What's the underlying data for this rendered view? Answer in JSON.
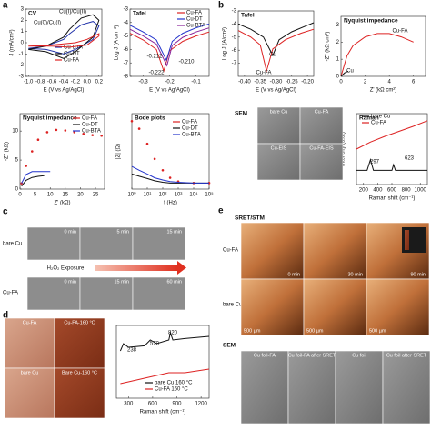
{
  "panel_labels": [
    "a",
    "b",
    "c",
    "d",
    "e"
  ],
  "plots": [
    {
      "type": "line",
      "title": "CV",
      "xlabel": "E (V vs Ag/AgCl)",
      "ylabel": "J (mA/cm²)",
      "xlim": [
        -1.05,
        0.25
      ],
      "ylim": [
        -3,
        3
      ],
      "xticks": [
        {
          "value": -1.0,
          "label": "-1.0"
        },
        {
          "value": -0.8,
          "label": "-0.8"
        },
        {
          "value": -0.6,
          "label": "-0.6"
        },
        {
          "value": -0.4,
          "label": "-0.4"
        },
        {
          "value": -0.2,
          "label": "-0.2"
        },
        {
          "value": 0,
          "label": "0.0"
        },
        {
          "value": 0.2,
          "label": "0.2"
        }
      ],
      "yticks": [
        -3,
        -2,
        -1,
        0,
        1,
        2,
        3
      ],
      "annotations": [
        "Cu(I)/Cu(II)",
        "Cu(0)/Cu(I)"
      ],
      "series": [
        {
          "name": "Cu-BTA",
          "color": "#2233aa",
          "x": [
            -1,
            -0.7,
            -0.4,
            -0.3,
            -0.1,
            0.1,
            0.2,
            0.1,
            -0.2,
            -0.4,
            -0.7,
            -1
          ],
          "y": [
            -0.5,
            -0.3,
            0.3,
            0.8,
            1.6,
            1.9,
            1.5,
            0.3,
            -0.6,
            -1,
            -0.6,
            -0.5
          ]
        },
        {
          "name": "Cu-DT",
          "color": "#111111",
          "x": [
            -1,
            -0.7,
            -0.4,
            -0.3,
            -0.1,
            0.1,
            0.2,
            0.1,
            -0.2,
            -0.4,
            -0.7,
            -1
          ],
          "y": [
            -0.6,
            -0.3,
            0.5,
            1.2,
            2.2,
            2.5,
            2,
            0.5,
            -0.8,
            -1.4,
            -0.8,
            -0.6
          ]
        },
        {
          "name": "Cu-FA",
          "color": "#dd2222",
          "x": [
            -1,
            -0.6,
            -0.2,
            0,
            0.2,
            0.2,
            0,
            -0.3,
            -0.6,
            -1
          ],
          "y": [
            -0.3,
            -0.2,
            0,
            0.3,
            0.8,
            0.6,
            -0.2,
            -0.4,
            -0.3,
            -0.3
          ]
        }
      ]
    },
    {
      "type": "line",
      "title": "Tafel",
      "xlabel": "E (V vs Ag/AgCl)",
      "ylabel": "Log J (A cm⁻²)",
      "xlim": [
        -0.35,
        -0.05
      ],
      "ylim": [
        -8,
        -3
      ],
      "xticks": [
        -0.3,
        -0.2,
        -0.1
      ],
      "yticks": [
        -8,
        -7,
        -6,
        -5,
        -4,
        -3
      ],
      "annotations": [
        "-0.212",
        "-0.222",
        "-0.210"
      ],
      "series": [
        {
          "name": "Cu-FA",
          "color": "#dd2222",
          "x": [
            -0.35,
            -0.3,
            -0.25,
            -0.222,
            -0.2,
            -0.15,
            -0.1,
            -0.05
          ],
          "y": [
            -4.8,
            -5.3,
            -6,
            -7.6,
            -6.1,
            -5.4,
            -5,
            -4.7
          ]
        },
        {
          "name": "Cu-DT",
          "color": "#2233cc",
          "x": [
            -0.35,
            -0.3,
            -0.25,
            -0.212,
            -0.19,
            -0.15,
            -0.1,
            -0.05
          ],
          "y": [
            -4.2,
            -4.7,
            -5.3,
            -6.8,
            -5.4,
            -4.8,
            -4.4,
            -4.1
          ]
        },
        {
          "name": "Cu-BTA",
          "color": "#882299",
          "x": [
            -0.35,
            -0.3,
            -0.25,
            -0.21,
            -0.19,
            -0.15,
            -0.1,
            -0.05
          ],
          "y": [
            -4.5,
            -5,
            -5.6,
            -7.2,
            -5.7,
            -5.1,
            -4.7,
            -4.4
          ]
        }
      ]
    },
    {
      "type": "line",
      "title": "Nyquist impedance",
      "xlabel": "Z' (kΩ)",
      "ylabel": "-Z'' (kΩ)",
      "xlim": [
        0,
        28
      ],
      "ylim": [
        0,
        13
      ],
      "xticks": [
        0,
        5,
        10,
        15,
        20,
        25
      ],
      "yticks": [
        0,
        5,
        10
      ],
      "annotations": [],
      "series": [
        {
          "name": "Cu-FA",
          "color": "#dd2222",
          "marker": "o",
          "x": [
            0.5,
            2,
            4,
            6,
            9,
            12,
            15,
            18,
            21,
            24,
            27
          ],
          "y": [
            1,
            4,
            6.5,
            8.5,
            9.8,
            10.2,
            10.1,
            9.8,
            9.5,
            9.3,
            9.2
          ]
        },
        {
          "name": "Cu-DT",
          "color": "#111111",
          "x": [
            0.5,
            2,
            4,
            6,
            8
          ],
          "y": [
            0.5,
            1.5,
            2,
            2.2,
            2.3
          ]
        },
        {
          "name": "Cu-BTA",
          "color": "#2233cc",
          "x": [
            0.5,
            2,
            4,
            6,
            8,
            10
          ],
          "y": [
            1,
            2.5,
            3,
            3,
            3,
            3
          ]
        }
      ]
    },
    {
      "type": "line",
      "title": "Bode plots",
      "xlabel": "f (Hz)",
      "ylabel": "|Z| (Ω)",
      "xlog": true,
      "xlim": [
        1,
        100000
      ],
      "ylim": [
        0,
        10
      ],
      "xticks": [
        {
          "value": 1,
          "label": "10⁰"
        },
        {
          "value": 10,
          "label": "10¹"
        },
        {
          "value": 100,
          "label": "10²"
        },
        {
          "value": 1000,
          "label": "10³"
        },
        {
          "value": 10000,
          "label": "10⁴"
        },
        {
          "value": 100000,
          "label": "10⁵"
        }
      ],
      "yticks": [],
      "annotations": [],
      "series": [
        {
          "name": "Cu-FA",
          "color": "#dd2222",
          "marker": "o",
          "x": [
            1,
            3,
            10,
            30,
            100,
            300,
            1000,
            10000,
            100000
          ],
          "y": [
            9,
            8,
            6,
            4,
            2.5,
            1.5,
            1,
            0.8,
            0.8
          ]
        },
        {
          "name": "Cu-DT",
          "color": "#111111",
          "x": [
            1,
            3,
            10,
            30,
            100,
            300,
            1000,
            10000,
            100000
          ],
          "y": [
            2,
            1.7,
            1.4,
            1.1,
            0.9,
            0.8,
            0.8,
            0.8,
            0.8
          ]
        },
        {
          "name": "Cu-BTA",
          "color": "#2233cc",
          "x": [
            1,
            3,
            10,
            30,
            100,
            300,
            1000,
            10000,
            100000
          ],
          "y": [
            3,
            2.5,
            2,
            1.5,
            1.2,
            1,
            0.9,
            0.8,
            0.8
          ]
        }
      ]
    },
    {
      "type": "line",
      "title": "Tafel",
      "xlabel": "E (V vs Ag/AgCl)",
      "ylabel": "Log J (A/cm²)",
      "xlim": [
        -0.42,
        -0.18
      ],
      "ylim": [
        -8,
        -3
      ],
      "xticks": [
        {
          "value": -0.4,
          "label": "-0.40"
        },
        {
          "value": -0.35,
          "label": "-0.35"
        },
        {
          "value": -0.3,
          "label": "-0.30"
        },
        {
          "value": -0.25,
          "label": "-0.25"
        },
        {
          "value": -0.2,
          "label": "-0.20"
        }
      ],
      "yticks": [
        -7,
        -6,
        -5,
        -4,
        -3
      ],
      "annotations": [
        "Cu",
        "Cu-FA"
      ],
      "series": [
        {
          "name": "Cu",
          "color": "#111111",
          "legend": false,
          "x": [
            -0.42,
            -0.38,
            -0.34,
            -0.31,
            -0.29,
            -0.25,
            -0.2,
            -0.18
          ],
          "y": [
            -4,
            -4.4,
            -5,
            -6.4,
            -5.2,
            -4.6,
            -4.1,
            -3.9
          ]
        },
        {
          "name": "Cu-FA",
          "color": "#dd2222",
          "legend": false,
          "x": [
            -0.42,
            -0.38,
            -0.35,
            -0.33,
            -0.31,
            -0.27,
            -0.22,
            -0.18
          ],
          "y": [
            -4.5,
            -5,
            -5.6,
            -7.6,
            -5.9,
            -5.2,
            -4.7,
            -4.4
          ]
        }
      ]
    },
    {
      "type": "line",
      "title": "Nyquist impedance",
      "xlabel": "Z' (kΩ cm²)",
      "ylabel": "-Z'' (kΩ cm²)",
      "xlim": [
        0,
        7
      ],
      "ylim": [
        0,
        3.5
      ],
      "xticks": [
        0,
        2,
        4,
        6
      ],
      "yticks": [
        0,
        1,
        2,
        3
      ],
      "annotations": [
        "Cu",
        "Cu-FA"
      ],
      "series": [
        {
          "name": "Cu-FA",
          "color": "#dd2222",
          "legend": false,
          "x": [
            0,
            0.5,
            1,
            2,
            3,
            4,
            5,
            6
          ],
          "y": [
            0,
            1.2,
            1.8,
            2.3,
            2.5,
            2.5,
            2.3,
            2.0
          ]
        },
        {
          "name": "Cu",
          "color": "#111111",
          "legend": false,
          "x": [
            0,
            0.3,
            0.6
          ],
          "y": [
            0,
            0.2,
            0.3
          ]
        }
      ]
    },
    {
      "type": "line",
      "title": "Raman",
      "xlabel": "Raman shift (cm⁻¹)",
      "ylabel": "Intensity (a.u.)",
      "xlim": [
        100,
        1100
      ],
      "ylim": [
        0,
        10
      ],
      "xticks": [
        200,
        400,
        600,
        800,
        1000
      ],
      "yticks": [],
      "annotations": [
        "297",
        "623"
      ],
      "series": [
        {
          "name": "bare Cu",
          "color": "#111111",
          "x": [
            100,
            250,
            297,
            340,
            500,
            600,
            623,
            650,
            800,
            1100
          ],
          "y": [
            2,
            2,
            3.5,
            2,
            2,
            2,
            2.8,
            2,
            2,
            2
          ]
        },
        {
          "name": "Cu-FA",
          "color": "#dd2222",
          "x": [
            100,
            300,
            500,
            700,
            900,
            1100
          ],
          "y": [
            5,
            6,
            6.8,
            7.5,
            8.2,
            9
          ]
        }
      ]
    },
    {
      "type": "line",
      "title": "",
      "xlabel": "Raman shift (cm⁻¹)",
      "ylabel": "Intensity (a.u.)",
      "xlim": [
        150,
        1300
      ],
      "ylim": [
        0,
        10
      ],
      "xticks": [
        300,
        600,
        900,
        1200
      ],
      "yticks": [],
      "annotations": [
        "238",
        "570",
        "820"
      ],
      "series": [
        {
          "name": "bare Cu 160 °C",
          "color": "#111111",
          "x": [
            200,
            238,
            300,
            500,
            570,
            650,
            800,
            820,
            850,
            1000,
            1300
          ],
          "y": [
            6.5,
            7.5,
            7,
            7.2,
            8,
            7.5,
            8,
            9,
            8,
            8.2,
            8.5
          ]
        },
        {
          "name": "Cu-FA 160 °C",
          "color": "#dd2222",
          "x": [
            200,
            400,
            600,
            800,
            1000,
            1300
          ],
          "y": [
            2,
            2.5,
            3,
            3.5,
            3.5,
            4
          ]
        }
      ]
    }
  ],
  "sem_b": {
    "title": "SEM",
    "tiles": [
      "bare Cu",
      "Cu-FA",
      "Cu-EIS",
      "Cu-FA-EIS"
    ]
  },
  "panel_c": {
    "rows": [
      "bare Cu",
      "Cu-FA"
    ],
    "times_top": [
      "0 min",
      "5 min",
      "15 min"
    ],
    "times_bottom": [
      "0 min",
      "15 min",
      "60 min"
    ],
    "arrow": "H₂O₂ Exposure"
  },
  "panel_d": {
    "tiles": [
      "Cu-FA",
      "Cu-FA-160 °C",
      "bare Cu",
      "Bare Cu-160 °C"
    ]
  },
  "panel_e": {
    "title": "SRET/STM",
    "rows": [
      "Cu-FA",
      "bare Cu"
    ],
    "times": [
      "0 min",
      "30 min",
      "90 min"
    ],
    "scale": "500 µm",
    "sem_title": "SEM",
    "sem_tiles": [
      "Cu foil-FA",
      "Cu foil-FA after SRET",
      "Cu foil",
      "Cu foil after SRET"
    ]
  }
}
